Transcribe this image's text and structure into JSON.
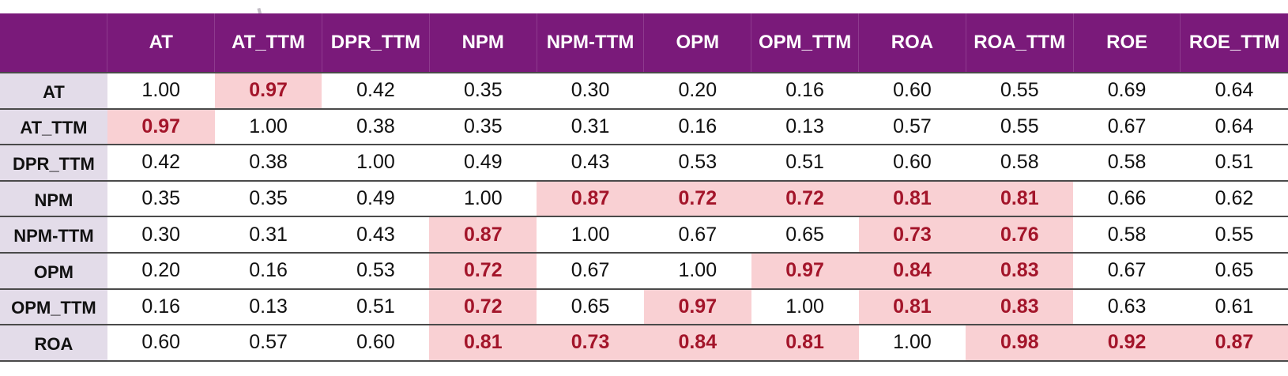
{
  "colors": {
    "header_bg": "#7a1a7a",
    "header_text": "#ffffff",
    "row_label_bg": "#e3dce9",
    "highlight_bg": "#f9d0d3",
    "highlight_text": "#a3152a",
    "rule": "#4a4a4a"
  },
  "corner": "",
  "columns": [
    "AT",
    "AT_TTM",
    "DPR_TTM",
    "NPM",
    "NPM-TTM",
    "OPM",
    "OPM_TTM",
    "ROA",
    "ROA_TTM",
    "ROE",
    "ROE_TTM"
  ],
  "rows": [
    {
      "label": "AT",
      "values": [
        "1.00",
        "0.97",
        "0.42",
        "0.35",
        "0.30",
        "0.20",
        "0.16",
        "0.60",
        "0.55",
        "0.69",
        "0.64"
      ],
      "highlight": [
        false,
        true,
        false,
        false,
        false,
        false,
        false,
        false,
        false,
        false,
        false
      ]
    },
    {
      "label": "AT_TTM",
      "values": [
        "0.97",
        "1.00",
        "0.38",
        "0.35",
        "0.31",
        "0.16",
        "0.13",
        "0.57",
        "0.55",
        "0.67",
        "0.64"
      ],
      "highlight": [
        true,
        false,
        false,
        false,
        false,
        false,
        false,
        false,
        false,
        false,
        false
      ]
    },
    {
      "label": "DPR_TTM",
      "values": [
        "0.42",
        "0.38",
        "1.00",
        "0.49",
        "0.43",
        "0.53",
        "0.51",
        "0.60",
        "0.58",
        "0.58",
        "0.51"
      ],
      "highlight": [
        false,
        false,
        false,
        false,
        false,
        false,
        false,
        false,
        false,
        false,
        false
      ]
    },
    {
      "label": "NPM",
      "values": [
        "0.35",
        "0.35",
        "0.49",
        "1.00",
        "0.87",
        "0.72",
        "0.72",
        "0.81",
        "0.81",
        "0.66",
        "0.62"
      ],
      "highlight": [
        false,
        false,
        false,
        false,
        true,
        true,
        true,
        true,
        true,
        false,
        false
      ]
    },
    {
      "label": "NPM-TTM",
      "values": [
        "0.30",
        "0.31",
        "0.43",
        "0.87",
        "1.00",
        "0.67",
        "0.65",
        "0.73",
        "0.76",
        "0.58",
        "0.55"
      ],
      "highlight": [
        false,
        false,
        false,
        true,
        false,
        false,
        false,
        true,
        true,
        false,
        false
      ]
    },
    {
      "label": "OPM",
      "values": [
        "0.20",
        "0.16",
        "0.53",
        "0.72",
        "0.67",
        "1.00",
        "0.97",
        "0.84",
        "0.83",
        "0.67",
        "0.65"
      ],
      "highlight": [
        false,
        false,
        false,
        true,
        false,
        false,
        true,
        true,
        true,
        false,
        false
      ]
    },
    {
      "label": "OPM_TTM",
      "values": [
        "0.16",
        "0.13",
        "0.51",
        "0.72",
        "0.65",
        "0.97",
        "1.00",
        "0.81",
        "0.83",
        "0.63",
        "0.61"
      ],
      "highlight": [
        false,
        false,
        false,
        true,
        false,
        true,
        false,
        true,
        true,
        false,
        false
      ]
    },
    {
      "label": "ROA",
      "values": [
        "0.60",
        "0.57",
        "0.60",
        "0.81",
        "0.73",
        "0.84",
        "0.81",
        "1.00",
        "0.98",
        "0.92",
        "0.87"
      ],
      "highlight": [
        false,
        false,
        false,
        true,
        true,
        true,
        true,
        false,
        true,
        true,
        true
      ]
    }
  ]
}
